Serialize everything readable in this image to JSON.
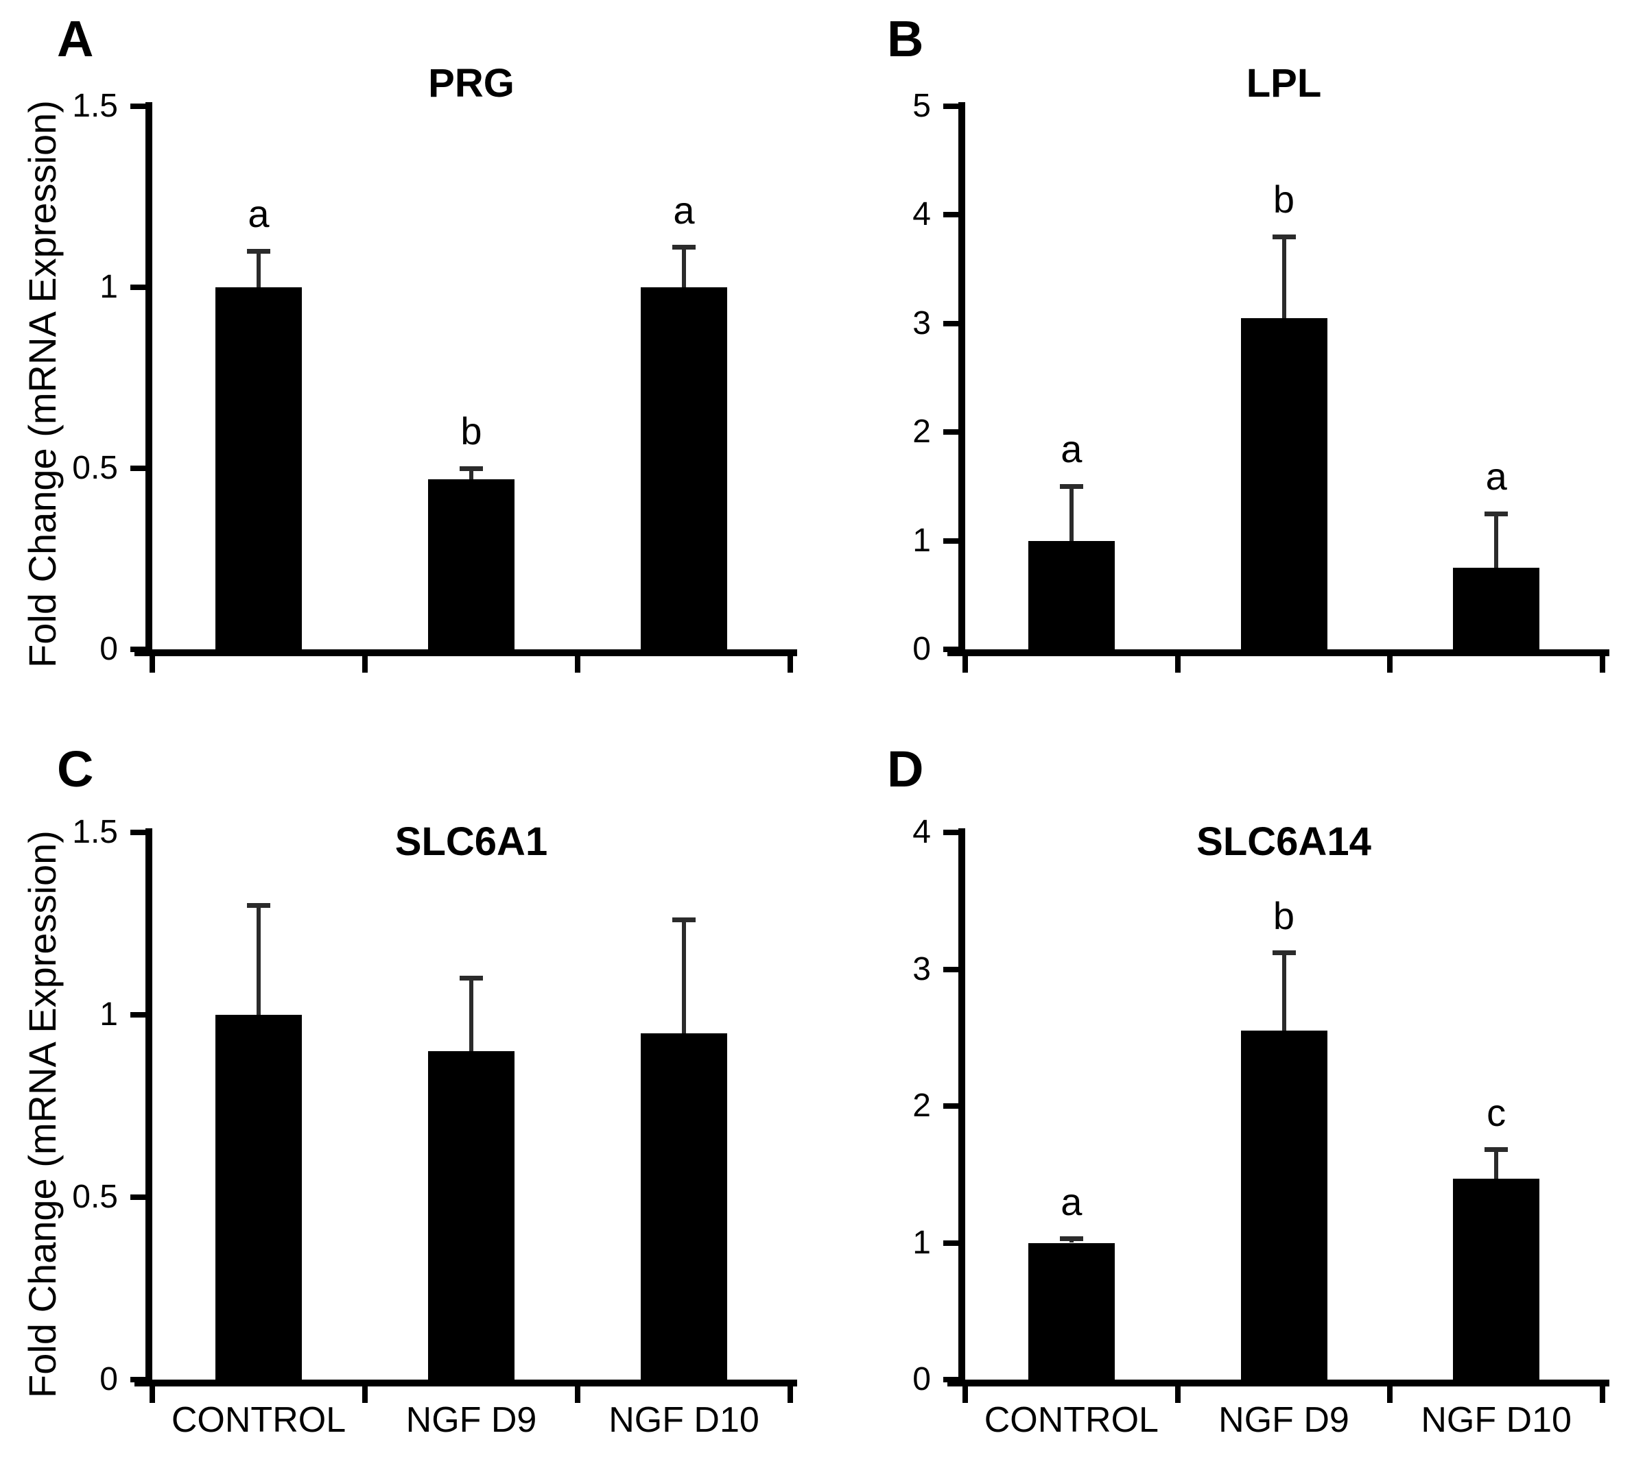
{
  "figure": {
    "background_color": "#ffffff",
    "bar_color": "#000000",
    "error_bar_color": "#2b2b2b",
    "text_color": "#000000"
  },
  "categories": [
    "CONTROL",
    "NGF D9",
    "NGF D10"
  ],
  "y_axis_label": "Fold Change (mRNA Expression)",
  "chart_data": [
    {
      "type": "bar",
      "panel": "A",
      "title": "PRG",
      "categories": [
        "CONTROL",
        "NGF D9",
        "NGF D10"
      ],
      "values": [
        1.0,
        0.47,
        1.0
      ],
      "errors_upper": [
        0.1,
        0.03,
        0.11
      ],
      "sig_letters": [
        "a",
        "b",
        "a"
      ],
      "ylabel": "Fold Change (mRNA Expression)",
      "xlabel": "",
      "ylim": [
        0,
        1.5
      ],
      "yticks": [
        0,
        0.5,
        1,
        1.5
      ],
      "grid": false,
      "legend": "none",
      "show_x_tick_labels": false
    },
    {
      "type": "bar",
      "panel": "B",
      "title": "LPL",
      "categories": [
        "CONTROL",
        "NGF D9",
        "NGF D10"
      ],
      "values": [
        1.0,
        3.05,
        0.75
      ],
      "errors_upper": [
        0.5,
        0.75,
        0.5
      ],
      "sig_letters": [
        "a",
        "b",
        "a"
      ],
      "ylabel": "",
      "xlabel": "",
      "ylim": [
        0,
        5
      ],
      "yticks": [
        0,
        1,
        2,
        3,
        4,
        5
      ],
      "grid": false,
      "legend": "none",
      "show_x_tick_labels": false
    },
    {
      "type": "bar",
      "panel": "C",
      "title": "SLC6A1",
      "categories": [
        "CONTROL",
        "NGF D9",
        "NGF D10"
      ],
      "values": [
        1.0,
        0.9,
        0.95
      ],
      "errors_upper": [
        0.3,
        0.2,
        0.31
      ],
      "sig_letters": [
        "",
        "",
        ""
      ],
      "ylabel": "Fold Change (mRNA Expression)",
      "xlabel": "",
      "ylim": [
        0,
        1.5
      ],
      "yticks": [
        0,
        0.5,
        1,
        1.5
      ],
      "grid": false,
      "legend": "none",
      "show_x_tick_labels": true
    },
    {
      "type": "bar",
      "panel": "D",
      "title": "SLC6A14",
      "categories": [
        "CONTROL",
        "NGF D9",
        "NGF D10"
      ],
      "values": [
        1.0,
        2.55,
        1.47
      ],
      "errors_upper": [
        0.03,
        0.57,
        0.21
      ],
      "sig_letters": [
        "a",
        "b",
        "c"
      ],
      "ylabel": "",
      "xlabel": "",
      "ylim": [
        0,
        4
      ],
      "yticks": [
        0,
        1,
        2,
        3,
        4
      ],
      "grid": false,
      "legend": "none",
      "show_x_tick_labels": true
    }
  ]
}
